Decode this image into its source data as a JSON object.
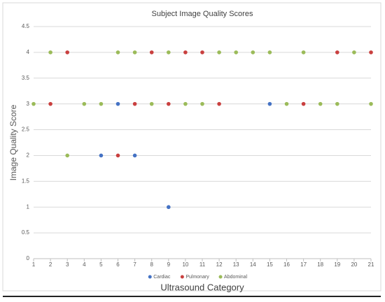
{
  "chart_data": {
    "type": "scatter",
    "title": "Subject Image Quality Scores",
    "x_label": "Ultrasound Category",
    "y_label": "Image Quality Score",
    "xlim": [
      1,
      21
    ],
    "xticks": [
      1,
      2,
      3,
      4,
      5,
      6,
      7,
      8,
      9,
      10,
      11,
      12,
      13,
      14,
      15,
      16,
      17,
      18,
      19,
      20,
      21
    ],
    "ylim": [
      0,
      4.5
    ],
    "yticks": [
      0,
      0.5,
      1,
      1.5,
      2,
      2.5,
      3,
      3.5,
      4,
      4.5
    ],
    "grid": true,
    "legend": "bottom",
    "series": [
      {
        "name": "Cardiac",
        "color": "#4472c4",
        "x": [
          5,
          6,
          7,
          9,
          15
        ],
        "values": [
          2,
          3,
          2,
          1,
          3
        ]
      },
      {
        "name": "Pulmonary",
        "color": "#c9403f",
        "x": [
          2,
          3,
          6,
          7,
          8,
          9,
          10,
          11,
          12,
          17,
          19,
          21
        ],
        "values": [
          3,
          4,
          2,
          3,
          4,
          3,
          4,
          4,
          3,
          3,
          4,
          4
        ]
      },
      {
        "name": "Abdominal",
        "color": "#9bbb59",
        "x": [
          1,
          2,
          3,
          4,
          5,
          6,
          7,
          8,
          9,
          10,
          11,
          12,
          13,
          14,
          15,
          16,
          17,
          18,
          19,
          20,
          21
        ],
        "values": [
          3,
          4,
          2,
          3,
          3,
          4,
          4,
          3,
          4,
          3,
          3,
          4,
          4,
          4,
          4,
          3,
          4,
          3,
          3,
          4,
          3
        ]
      }
    ]
  }
}
